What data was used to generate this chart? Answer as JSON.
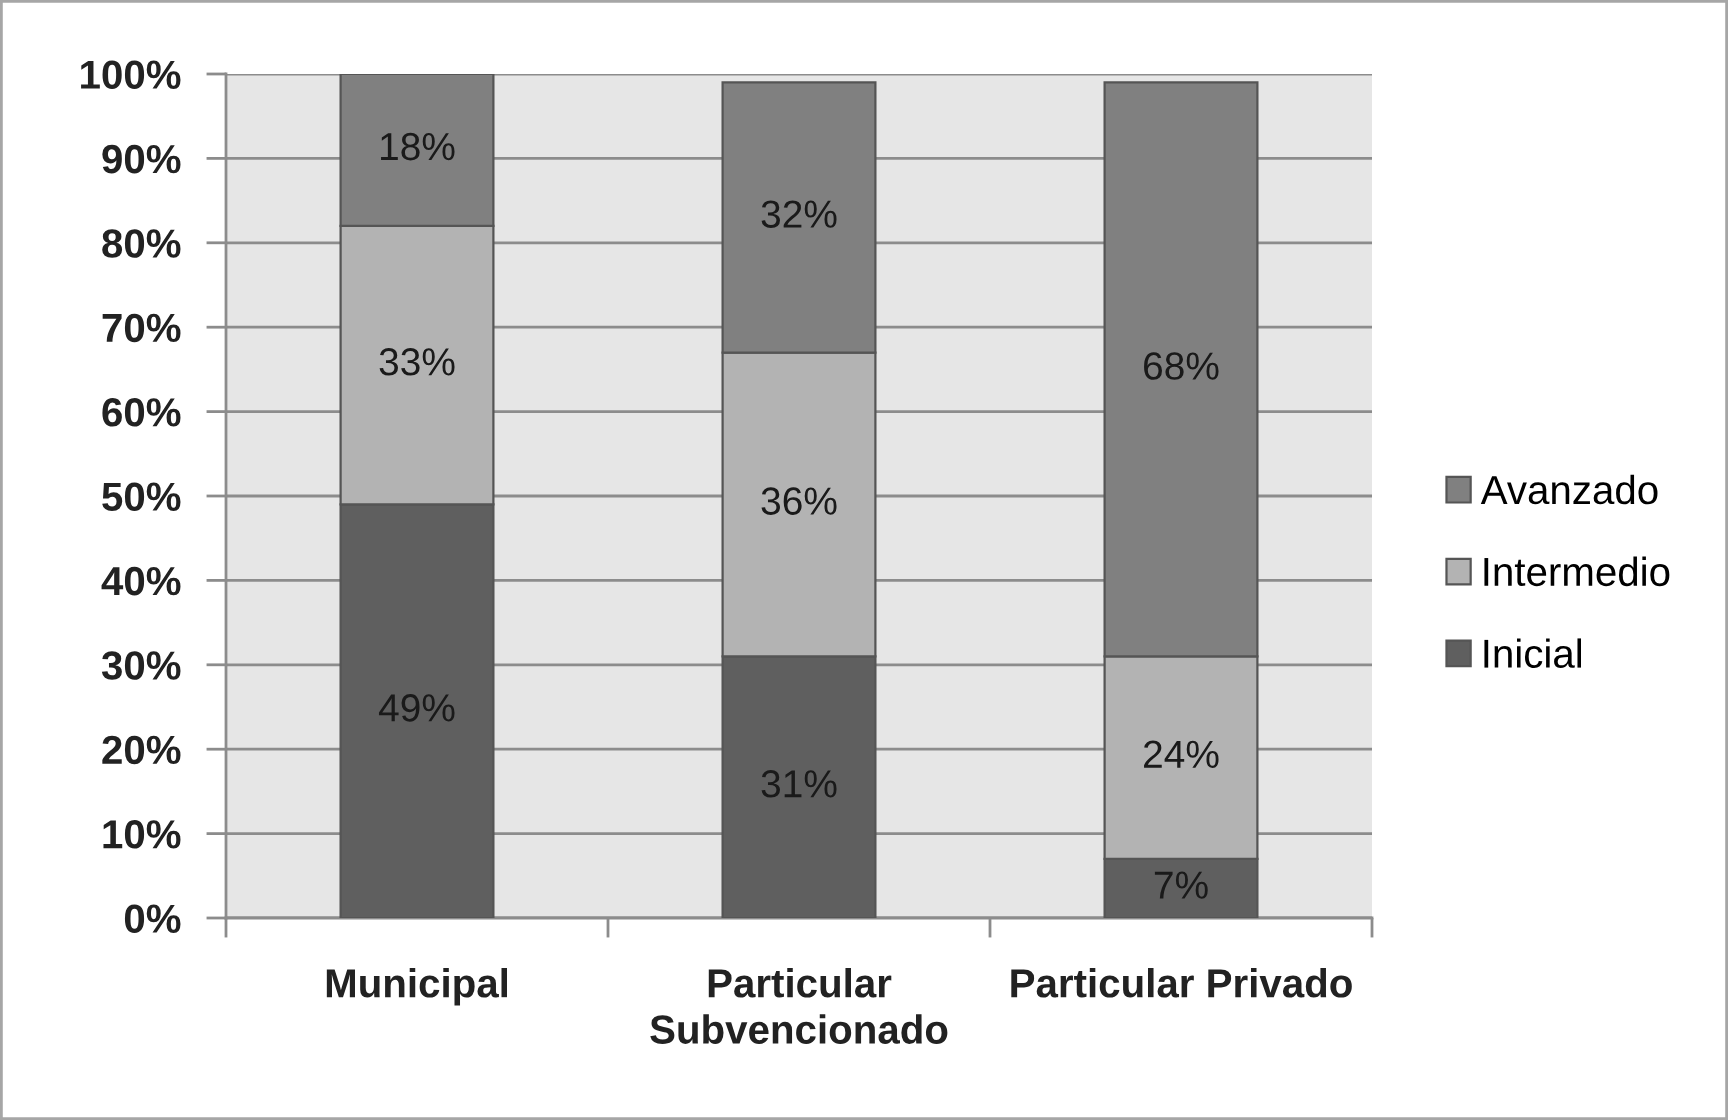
{
  "chart_data": {
    "type": "bar",
    "stacked": true,
    "categories": [
      "Municipal",
      "Particular Subvencionado",
      "Particular Privado"
    ],
    "series": [
      {
        "name": "Inicial",
        "color": "#5f5f5f",
        "values": [
          49,
          31,
          7
        ],
        "value_labels": [
          "49%",
          "31%",
          "7%"
        ]
      },
      {
        "name": "Intermedio",
        "color": "#b3b3b3",
        "values": [
          33,
          36,
          24
        ],
        "value_labels": [
          "33%",
          "36%",
          "24%"
        ]
      },
      {
        "name": "Avanzado",
        "color": "#808080",
        "values": [
          18,
          32,
          68
        ],
        "value_labels": [
          "18%",
          "32%",
          "68%"
        ]
      }
    ],
    "ylim": [
      0,
      100
    ],
    "yticks": [
      {
        "value": 0,
        "label": "0%"
      },
      {
        "value": 10,
        "label": "10%"
      },
      {
        "value": 20,
        "label": "20%"
      },
      {
        "value": 30,
        "label": "30%"
      },
      {
        "value": 40,
        "label": "40%"
      },
      {
        "value": 50,
        "label": "50%"
      },
      {
        "value": 60,
        "label": "60%"
      },
      {
        "value": 70,
        "label": "70%"
      },
      {
        "value": 80,
        "label": "80%"
      },
      {
        "value": 90,
        "label": "90%"
      },
      {
        "value": 100,
        "label": "100%"
      }
    ],
    "grid": "y",
    "legend": "right"
  }
}
